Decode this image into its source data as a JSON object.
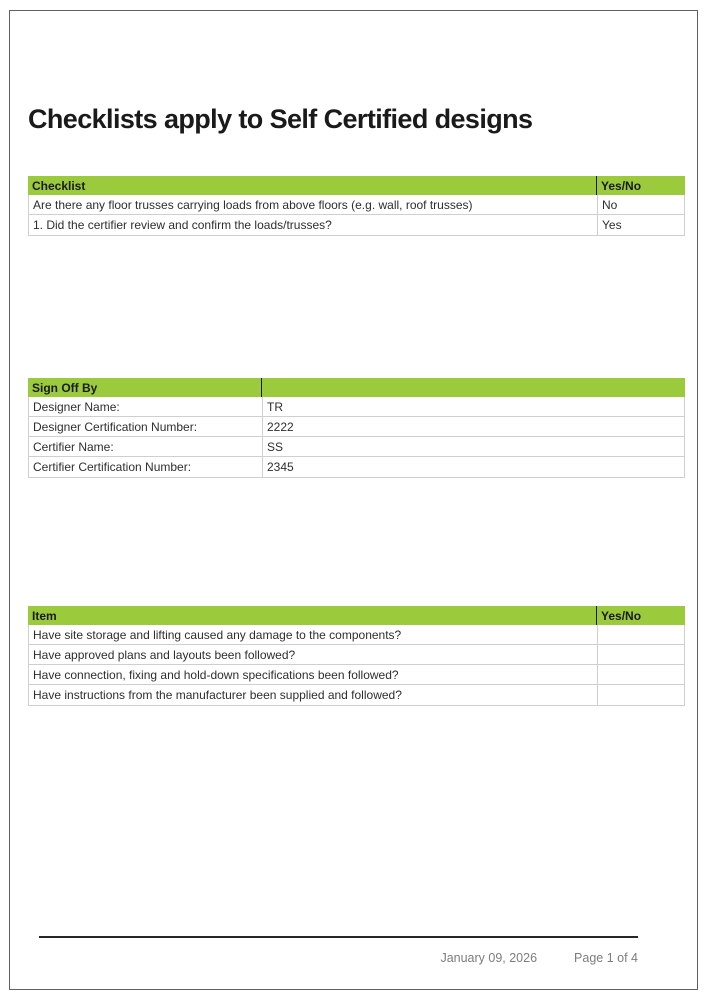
{
  "page": {
    "title": "Checklists apply to Self Certified designs",
    "footer": {
      "date": "January 09, 2026",
      "page_info": "Page 1 of 4"
    }
  },
  "colors": {
    "header_green": "#9BCB3C",
    "light_border": "#cfcfcf",
    "dark_divider": "#1a1a1a",
    "frame_gray": "#606060",
    "footer_gray": "#7d7d7d",
    "text_dark": "#1a1a1a",
    "text_body": "#2e2e2e"
  },
  "checklist_table": {
    "headers": [
      "Checklist",
      "Yes/No"
    ],
    "rows": [
      {
        "question": "Are there any floor trusses carrying loads from above floors (e.g. wall, roof trusses)",
        "answer": "No"
      },
      {
        "question": "1. Did the certifier review and confirm the loads/trusses?",
        "answer": "Yes"
      }
    ]
  },
  "signoff_table": {
    "headers": [
      "Sign Off By",
      ""
    ],
    "rows": [
      {
        "label": "Designer Name:",
        "value": "TR"
      },
      {
        "label": "Designer Certification Number:",
        "value": "2222"
      },
      {
        "label": "Certifier Name:",
        "value": "SS"
      },
      {
        "label": "Certifier Certification Number:",
        "value": "2345"
      }
    ]
  },
  "item_table": {
    "headers": [
      "Item",
      "Yes/No"
    ],
    "rows": [
      {
        "question": "Have site storage and lifting caused any damage to the components?",
        "answer": ""
      },
      {
        "question": "Have approved plans and layouts been followed?",
        "answer": ""
      },
      {
        "question": "Have connection, fixing and hold-down specifications been followed?",
        "answer": ""
      },
      {
        "question": "Have instructions from the manufacturer been supplied and followed?",
        "answer": ""
      }
    ]
  }
}
